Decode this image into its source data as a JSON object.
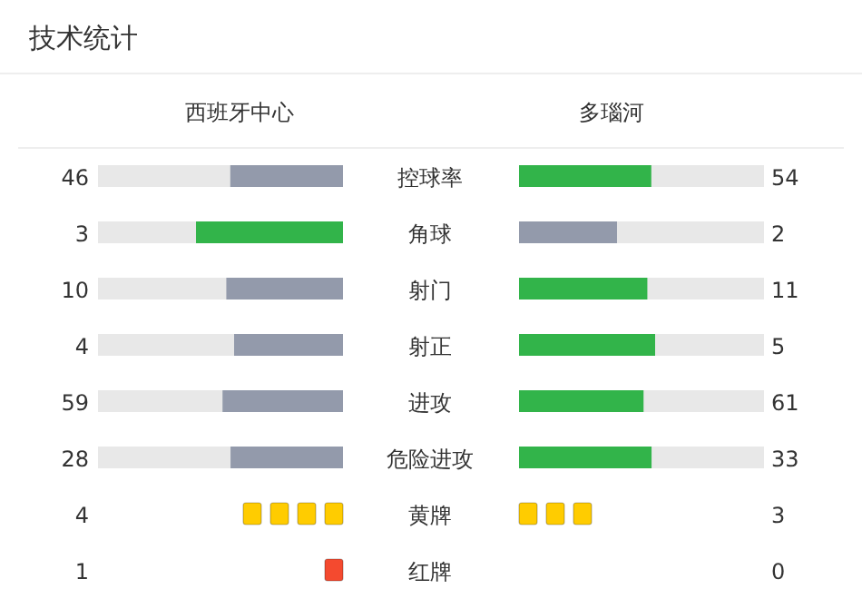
{
  "chart_data": [
    {
      "type": "other",
      "title": "技术统计",
      "categories": [
        "控球率",
        "角球",
        "射门",
        "射正",
        "进攻",
        "危险进攻"
      ],
      "series": [
        {
          "name": "西班牙中心",
          "values": [
            46,
            3,
            10,
            4,
            59,
            28
          ],
          "colors": [
            "#939aab",
            "#32b44a",
            "#939aab",
            "#939aab",
            "#939aab",
            "#939aab"
          ]
        },
        {
          "name": "多瑙河",
          "values": [
            54,
            2,
            11,
            5,
            61,
            33
          ],
          "colors": [
            "#32b44a",
            "#939aab",
            "#32b44a",
            "#32b44a",
            "#32b44a",
            "#32b44a"
          ]
        }
      ],
      "data_labels": true
    },
    {
      "type": "other",
      "categories": [
        "黄牌",
        "红牌"
      ],
      "series": [
        {
          "values": [
            4,
            1
          ],
          "colors": [
            "#ffcc00",
            "#f44a2f"
          ]
        },
        {
          "values": [
            3,
            0
          ],
          "colors": [
            "#ffcc00",
            null
          ]
        }
      ],
      "data_labels": true
    }
  ]
}
